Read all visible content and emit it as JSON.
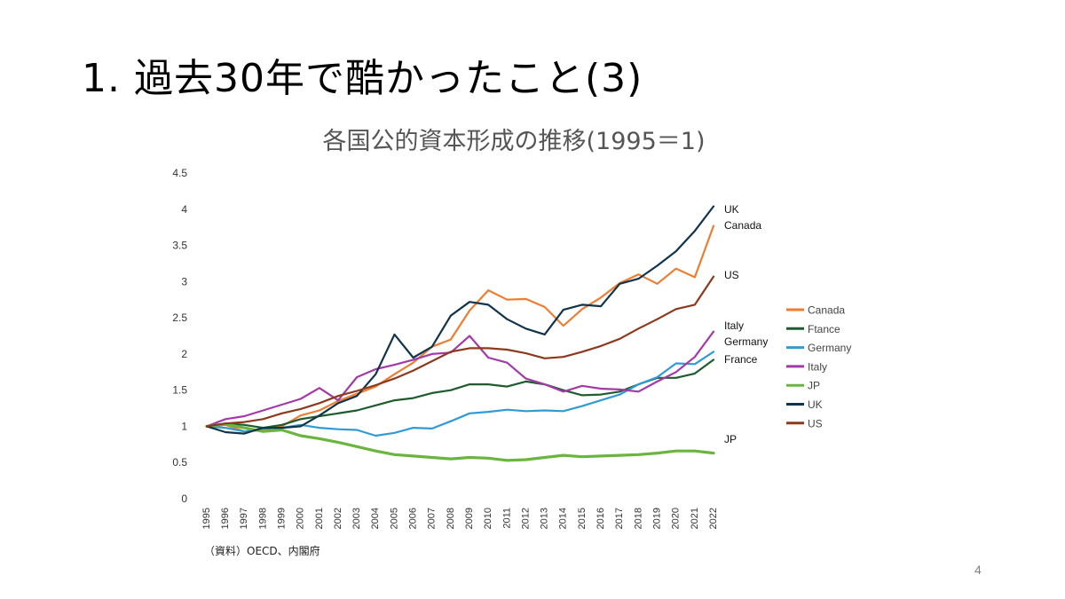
{
  "slide": {
    "title": "1. 過去30年で酷かったこと(3)",
    "page_number": "4"
  },
  "chart_data": {
    "type": "line",
    "title": "各国公的資本形成の推移(1995＝1)",
    "source": "（資料）OECD、内閣府",
    "x": [
      "1995",
      "1996",
      "1997",
      "1998",
      "1999",
      "2000",
      "2001",
      "2002",
      "2003",
      "2004",
      "2005",
      "2006",
      "2007",
      "2008",
      "2009",
      "2010",
      "2011",
      "2012",
      "2013",
      "2014",
      "2015",
      "2016",
      "2017",
      "2018",
      "2019",
      "2020",
      "2021",
      "2022"
    ],
    "ylim": [
      0,
      4.5
    ],
    "yticks": [
      "0",
      "0.5",
      "1",
      "1.5",
      "2",
      "2.5",
      "3",
      "3.5",
      "4",
      "4.5"
    ],
    "grid": false,
    "legend_position": "right",
    "series": [
      {
        "name": "Canada",
        "color": "#ED7D31",
        "values": [
          1.0,
          1.02,
          0.93,
          0.95,
          1.0,
          1.15,
          1.22,
          1.35,
          1.45,
          1.55,
          1.72,
          1.88,
          2.1,
          2.2,
          2.6,
          2.88,
          2.75,
          2.76,
          2.65,
          2.39,
          2.62,
          2.78,
          2.98,
          3.1,
          2.97,
          3.18,
          3.06,
          3.77
        ]
      },
      {
        "name": "Ftance",
        "color": "#1E5C2E",
        "values": [
          1.0,
          1.04,
          1.02,
          0.98,
          1.02,
          1.1,
          1.14,
          1.18,
          1.22,
          1.29,
          1.36,
          1.39,
          1.46,
          1.5,
          1.58,
          1.58,
          1.55,
          1.62,
          1.58,
          1.5,
          1.43,
          1.44,
          1.48,
          1.58,
          1.67,
          1.67,
          1.73,
          1.92
        ]
      },
      {
        "name": "Germany",
        "color": "#2E9BD6",
        "values": [
          1.0,
          0.98,
          0.93,
          0.97,
          0.98,
          1.02,
          0.98,
          0.96,
          0.95,
          0.87,
          0.91,
          0.98,
          0.97,
          1.07,
          1.18,
          1.2,
          1.23,
          1.21,
          1.22,
          1.21,
          1.28,
          1.36,
          1.44,
          1.58,
          1.68,
          1.87,
          1.86,
          2.03
        ]
      },
      {
        "name": "Italy",
        "color": "#A33AA8",
        "values": [
          1.0,
          1.1,
          1.14,
          1.22,
          1.3,
          1.38,
          1.53,
          1.36,
          1.68,
          1.79,
          1.85,
          1.92,
          2.0,
          2.02,
          2.25,
          1.95,
          1.88,
          1.66,
          1.58,
          1.48,
          1.56,
          1.52,
          1.51,
          1.48,
          1.62,
          1.75,
          1.96,
          2.31
        ]
      },
      {
        "name": "JP",
        "color": "#6AB53E",
        "values": [
          1.0,
          1.03,
          0.98,
          0.93,
          0.95,
          0.87,
          0.83,
          0.78,
          0.72,
          0.66,
          0.61,
          0.59,
          0.57,
          0.55,
          0.57,
          0.56,
          0.53,
          0.54,
          0.57,
          0.6,
          0.58,
          0.59,
          0.6,
          0.61,
          0.63,
          0.66,
          0.66,
          0.63
        ]
      },
      {
        "name": "UK",
        "color": "#12344A",
        "values": [
          1.0,
          0.92,
          0.9,
          0.98,
          0.98,
          1.0,
          1.15,
          1.32,
          1.42,
          1.72,
          2.27,
          1.95,
          2.1,
          2.53,
          2.72,
          2.68,
          2.48,
          2.35,
          2.27,
          2.61,
          2.68,
          2.66,
          2.97,
          3.04,
          3.22,
          3.42,
          3.7,
          4.04
        ]
      },
      {
        "name": "US",
        "color": "#8B3A1D",
        "values": [
          1.0,
          1.04,
          1.06,
          1.1,
          1.18,
          1.24,
          1.32,
          1.42,
          1.49,
          1.57,
          1.66,
          1.77,
          1.9,
          2.03,
          2.08,
          2.08,
          2.06,
          2.01,
          1.94,
          1.96,
          2.03,
          2.11,
          2.21,
          2.35,
          2.48,
          2.62,
          2.68,
          3.07
        ]
      }
    ],
    "end_labels": [
      "UK",
      "Canada",
      "US",
      "Italy",
      "Germany",
      "France",
      "JP"
    ]
  }
}
